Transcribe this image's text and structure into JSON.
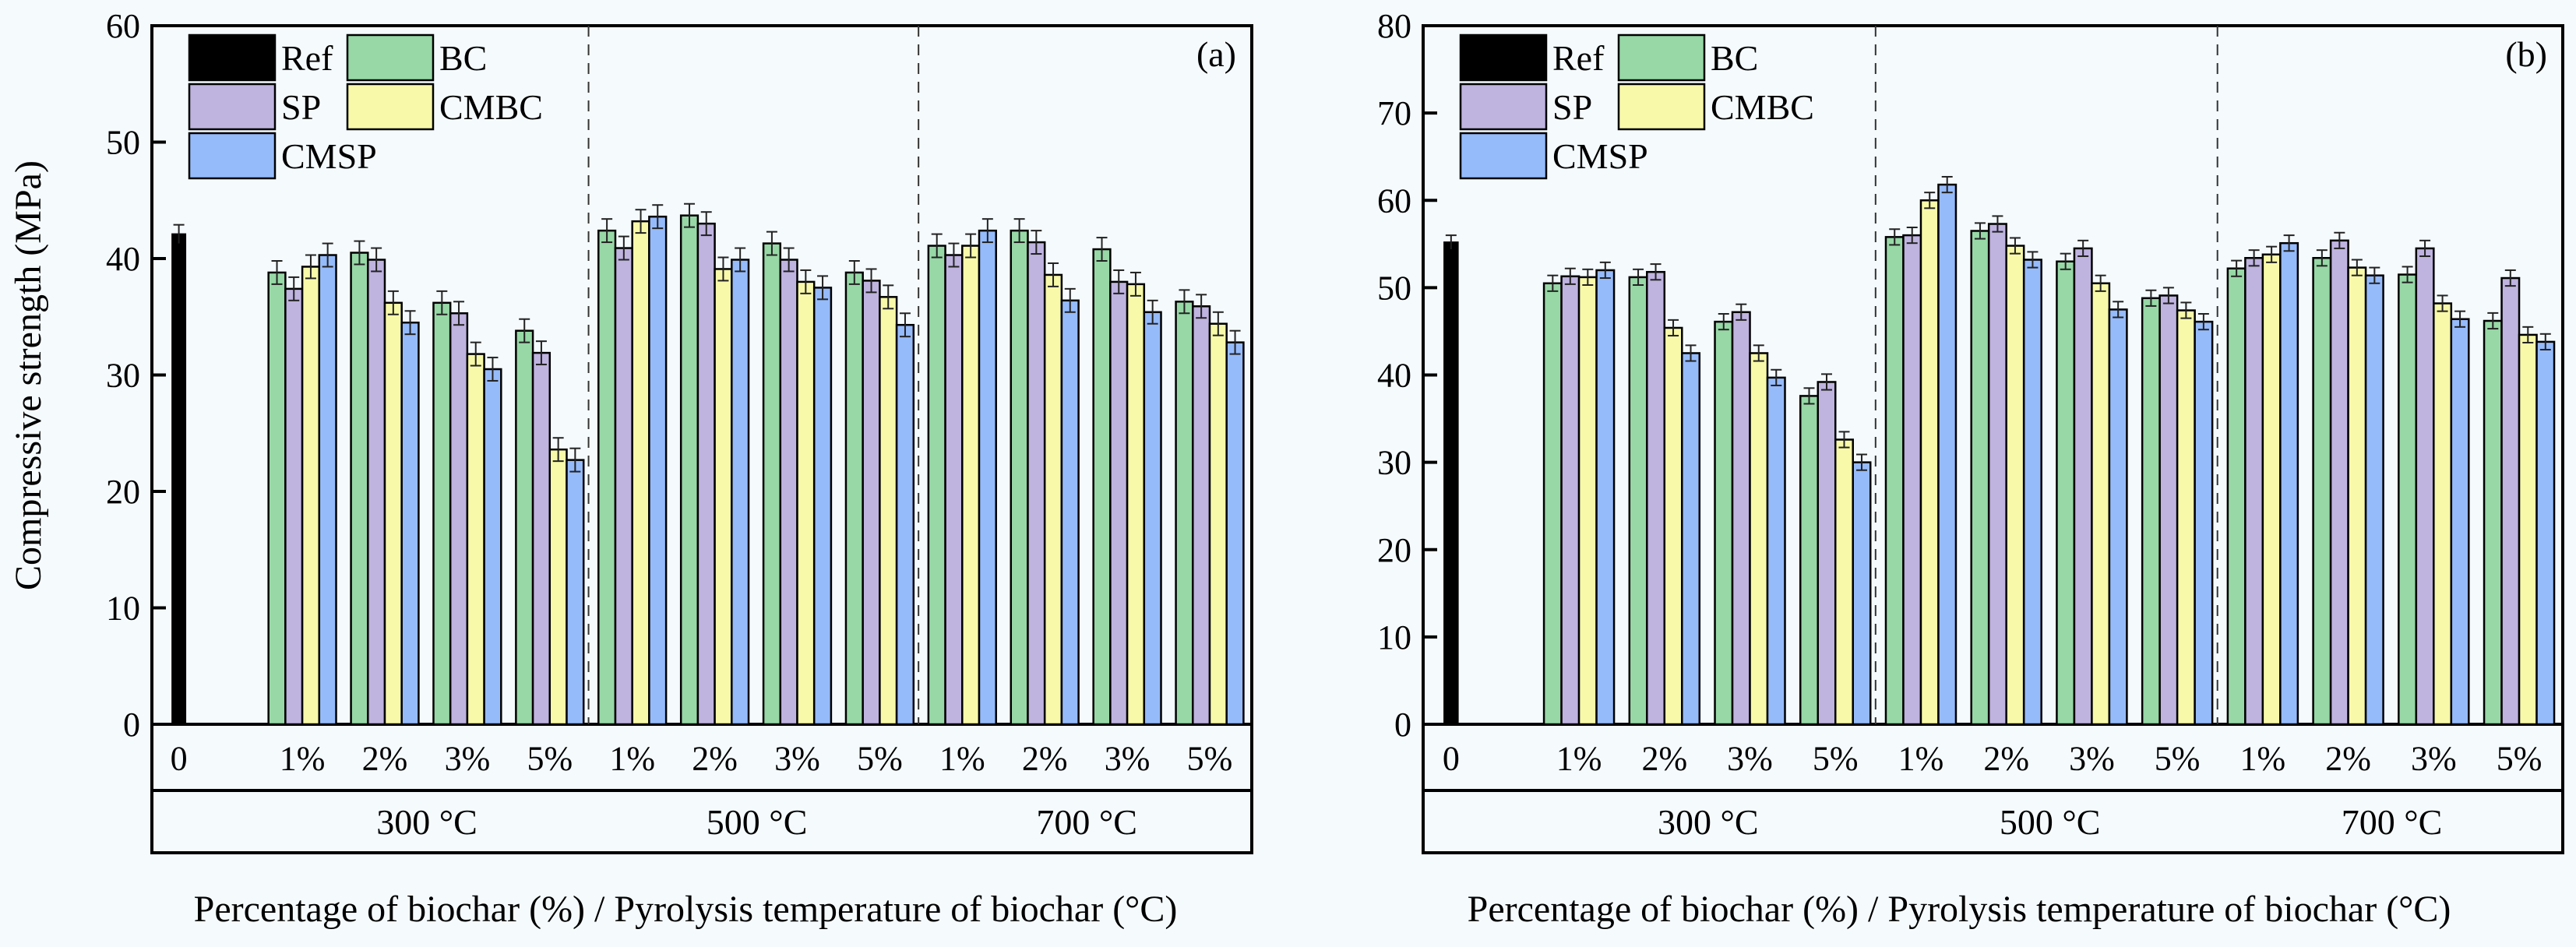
{
  "figure": {
    "xlabel": "Percentage of biochar (%) / Pyrolysis temperature of biochar (°C)",
    "ylabel": "Compressive strength (MPa)"
  },
  "chart_data": [
    {
      "type": "bar",
      "panel_label": "(a)",
      "title": "",
      "xlabel": "Percentage of biochar (%) / Pyrolysis temperature of biochar (°C)",
      "ylabel": "Compressive strength (MPa)",
      "ylim": [
        0,
        60
      ],
      "yticks": [
        0,
        10,
        20,
        30,
        40,
        50,
        60
      ],
      "grid": false,
      "legend": {
        "placement": "top-left",
        "entries": [
          "Ref",
          "BC",
          "SP",
          "CMBC",
          "CMSP"
        ]
      },
      "colors": {
        "Ref": "#000000",
        "BC": "#97d8a6",
        "SP": "#bfb3e0",
        "CMBC": "#f8f9a9",
        "CMSP": "#96bbfb"
      },
      "reference": {
        "label": "0",
        "name": "Ref",
        "value": 42.1,
        "error": 0.8
      },
      "temperatures": [
        "300 °C",
        "500 °C",
        "700 °C"
      ],
      "percentages": [
        "1%",
        "2%",
        "3%",
        "5%"
      ],
      "groups": [
        {
          "temperature": "300 °C",
          "items": [
            {
              "pct": "1%",
              "BC": 38.8,
              "SP": 37.4,
              "CMBC": 39.3,
              "CMSP": 40.3
            },
            {
              "pct": "2%",
              "BC": 40.5,
              "SP": 39.9,
              "CMBC": 36.2,
              "CMSP": 34.5
            },
            {
              "pct": "3%",
              "BC": 36.2,
              "SP": 35.3,
              "CMBC": 31.8,
              "CMSP": 30.5
            },
            {
              "pct": "5%",
              "BC": 33.8,
              "SP": 31.9,
              "CMBC": 23.6,
              "CMSP": 22.7
            }
          ]
        },
        {
          "temperature": "500 °C",
          "items": [
            {
              "pct": "1%",
              "BC": 42.4,
              "SP": 40.9,
              "CMBC": 43.2,
              "CMSP": 43.6
            },
            {
              "pct": "2%",
              "BC": 43.7,
              "SP": 43.0,
              "CMBC": 39.1,
              "CMSP": 39.9
            },
            {
              "pct": "3%",
              "BC": 41.3,
              "SP": 39.9,
              "CMBC": 38.0,
              "CMSP": 37.5
            },
            {
              "pct": "5%",
              "BC": 38.8,
              "SP": 38.1,
              "CMBC": 36.7,
              "CMSP": 34.3
            }
          ]
        },
        {
          "temperature": "700 °C",
          "items": [
            {
              "pct": "1%",
              "BC": 41.1,
              "SP": 40.3,
              "CMBC": 41.1,
              "CMSP": 42.4
            },
            {
              "pct": "2%",
              "BC": 42.4,
              "SP": 41.4,
              "CMBC": 38.6,
              "CMSP": 36.4
            },
            {
              "pct": "3%",
              "BC": 40.8,
              "SP": 38.0,
              "CMBC": 37.8,
              "CMSP": 35.4
            },
            {
              "pct": "5%",
              "BC": 36.3,
              "SP": 35.9,
              "CMBC": 34.4,
              "CMSP": 32.8
            }
          ]
        }
      ],
      "error_typical": 1.0
    },
    {
      "type": "bar",
      "panel_label": "(b)",
      "title": "",
      "xlabel": "Percentage of biochar (%) / Pyrolysis temperature of biochar (°C)",
      "ylabel": "",
      "ylim": [
        0,
        80
      ],
      "yticks": [
        0,
        10,
        20,
        30,
        40,
        50,
        60,
        70,
        80
      ],
      "grid": false,
      "legend": {
        "placement": "top-left",
        "entries": [
          "Ref",
          "BC",
          "SP",
          "CMBC",
          "CMSP"
        ]
      },
      "colors": {
        "Ref": "#000000",
        "BC": "#97d8a6",
        "SP": "#bfb3e0",
        "CMBC": "#f8f9a9",
        "CMSP": "#96bbfb"
      },
      "reference": {
        "label": "0",
        "name": "Ref",
        "value": 55.2,
        "error": 0.8
      },
      "temperatures": [
        "300 °C",
        "500 °C",
        "700 °C"
      ],
      "percentages": [
        "1%",
        "2%",
        "3%",
        "5%"
      ],
      "groups": [
        {
          "temperature": "300 °C",
          "items": [
            {
              "pct": "1%",
              "BC": 50.5,
              "SP": 51.3,
              "CMBC": 51.2,
              "CMSP": 52.0
            },
            {
              "pct": "2%",
              "BC": 51.2,
              "SP": 51.8,
              "CMBC": 45.4,
              "CMSP": 42.5
            },
            {
              "pct": "3%",
              "BC": 46.1,
              "SP": 47.2,
              "CMBC": 42.5,
              "CMSP": 39.7
            },
            {
              "pct": "5%",
              "BC": 37.6,
              "SP": 39.2,
              "CMBC": 32.6,
              "CMSP": 30.0
            }
          ]
        },
        {
          "temperature": "500 °C",
          "items": [
            {
              "pct": "1%",
              "BC": 55.8,
              "SP": 56.0,
              "CMBC": 60.0,
              "CMSP": 61.8
            },
            {
              "pct": "2%",
              "BC": 56.5,
              "SP": 57.3,
              "CMBC": 54.8,
              "CMSP": 53.2
            },
            {
              "pct": "3%",
              "BC": 53.0,
              "SP": 54.5,
              "CMBC": 50.5,
              "CMSP": 47.5
            },
            {
              "pct": "5%",
              "BC": 48.8,
              "SP": 49.1,
              "CMBC": 47.4,
              "CMSP": 46.1
            }
          ]
        },
        {
          "temperature": "700 °C",
          "items": [
            {
              "pct": "1%",
              "BC": 52.2,
              "SP": 53.4,
              "CMBC": 53.8,
              "CMSP": 55.1
            },
            {
              "pct": "2%",
              "BC": 53.4,
              "SP": 55.4,
              "CMBC": 52.3,
              "CMSP": 51.4
            },
            {
              "pct": "3%",
              "BC": 51.5,
              "SP": 54.5,
              "CMBC": 48.2,
              "CMSP": 46.4
            },
            {
              "pct": "5%",
              "BC": 46.2,
              "SP": 51.1,
              "CMBC": 44.6,
              "CMSP": 43.8
            }
          ]
        }
      ],
      "error_typical": 0.9
    }
  ]
}
